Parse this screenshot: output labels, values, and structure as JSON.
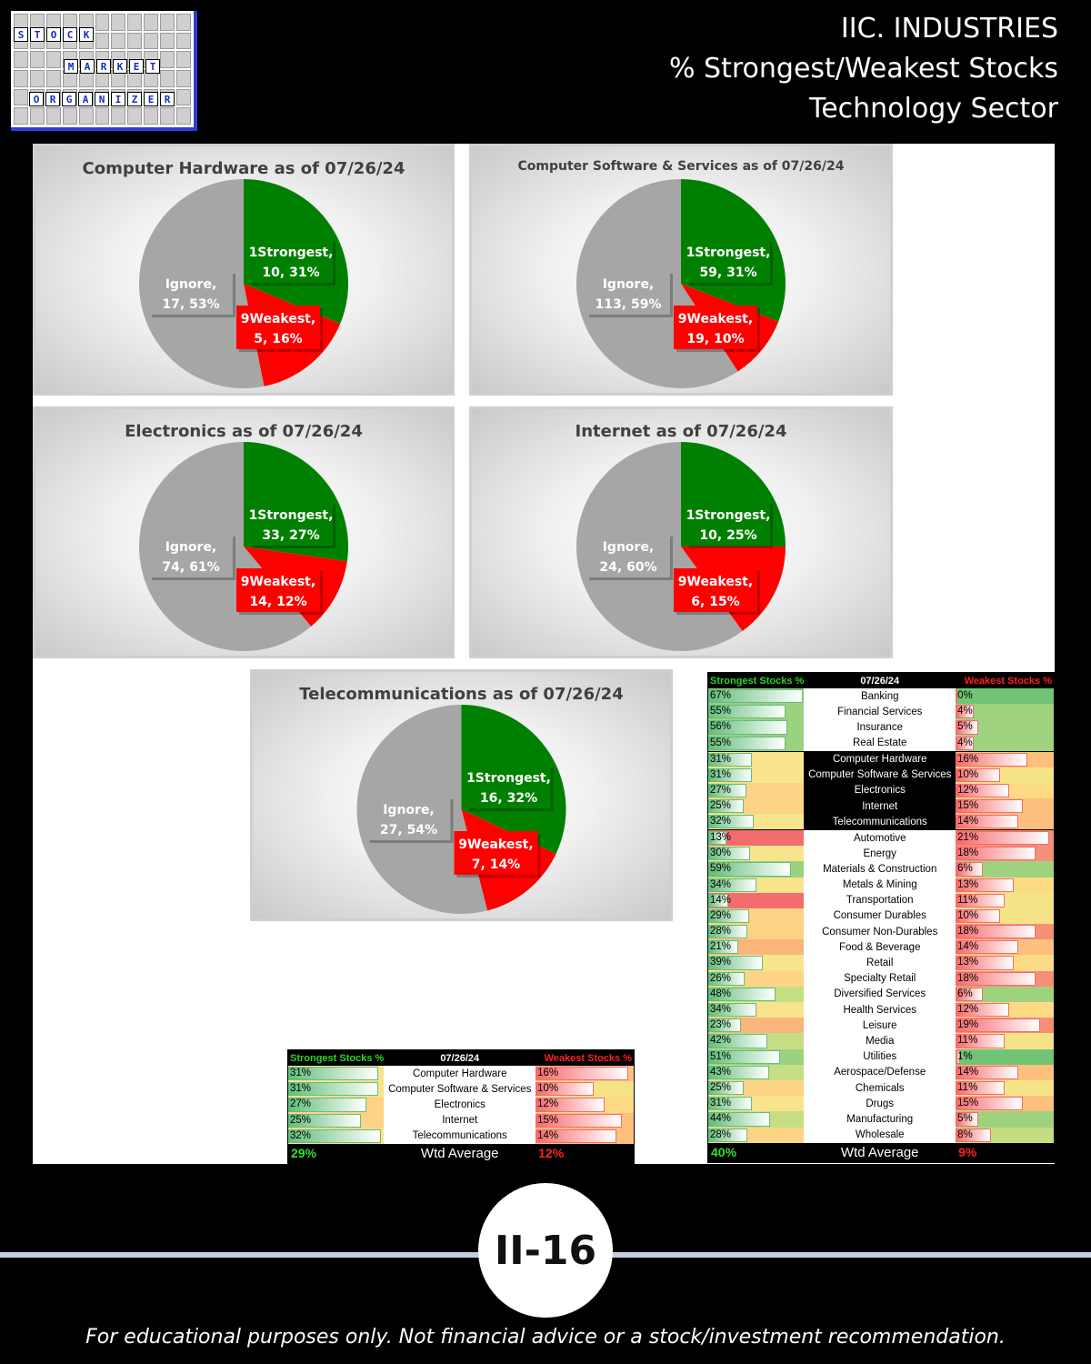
{
  "header": {
    "logo_words": [
      "STOCK",
      "MARKET",
      "ORGANIZER"
    ],
    "title_lines": [
      "IIC. INDUSTRIES",
      "% Strongest/Weakest Stocks",
      "Technology Sector"
    ]
  },
  "colors": {
    "strongest": "#008000",
    "weakest": "#ff0000",
    "ignore": "#a6a6a6"
  },
  "chart_data": [
    {
      "type": "pie",
      "title": "Computer Hardware as of 07/26/24",
      "slices": [
        {
          "name": "1Strongest",
          "value": 10,
          "percent": "31%"
        },
        {
          "name": "9Weakest",
          "value": 5,
          "percent": "16%"
        },
        {
          "name": "Ignore",
          "value": 17,
          "percent": "53%"
        }
      ]
    },
    {
      "type": "pie",
      "title": "Computer Software & Services as of 07/26/24",
      "slices": [
        {
          "name": "1Strongest",
          "value": 59,
          "percent": "31%"
        },
        {
          "name": "9Weakest",
          "value": 19,
          "percent": "10%"
        },
        {
          "name": "Ignore",
          "value": 113,
          "percent": "59%"
        }
      ]
    },
    {
      "type": "pie",
      "title": "Electronics as of 07/26/24",
      "slices": [
        {
          "name": "1Strongest",
          "value": 33,
          "percent": "27%"
        },
        {
          "name": "9Weakest",
          "value": 14,
          "percent": "12%"
        },
        {
          "name": "Ignore",
          "value": 74,
          "percent": "61%"
        }
      ]
    },
    {
      "type": "pie",
      "title": "Internet as of 07/26/24",
      "slices": [
        {
          "name": "1Strongest",
          "value": 10,
          "percent": "25%"
        },
        {
          "name": "9Weakest",
          "value": 6,
          "percent": "15%"
        },
        {
          "name": "Ignore",
          "value": 24,
          "percent": "60%"
        }
      ]
    },
    {
      "type": "pie",
      "title": "Telecommunications as of 07/26/24",
      "slices": [
        {
          "name": "1Strongest",
          "value": 16,
          "percent": "32%"
        },
        {
          "name": "9Weakest",
          "value": 7,
          "percent": "14%"
        },
        {
          "name": "Ignore",
          "value": 27,
          "percent": "54%"
        }
      ]
    }
  ],
  "small_table": {
    "headers": [
      "Strongest Stocks %",
      "07/26/24",
      "Weakest Stocks %"
    ],
    "rows": [
      {
        "strong": "31%",
        "name": "Computer Hardware",
        "weak": "16%"
      },
      {
        "strong": "31%",
        "name": "Computer Software & Services",
        "weak": "10%"
      },
      {
        "strong": "27%",
        "name": "Electronics",
        "weak": "12%"
      },
      {
        "strong": "25%",
        "name": "Internet",
        "weak": "15%"
      },
      {
        "strong": "32%",
        "name": "Telecommunications",
        "weak": "14%"
      }
    ],
    "footer": {
      "strong": "29%",
      "label": "Wtd Average",
      "weak": "12%"
    }
  },
  "big_table": {
    "headers": [
      "Strongest Stocks %",
      "07/26/24",
      "Weakest Stocks %"
    ],
    "rows": [
      {
        "strong": "67%",
        "name": "Banking",
        "weak": "0%"
      },
      {
        "strong": "55%",
        "name": "Financial Services",
        "weak": "4%"
      },
      {
        "strong": "56%",
        "name": "Insurance",
        "weak": "5%"
      },
      {
        "strong": "55%",
        "name": "Real Estate",
        "weak": "4%"
      },
      {
        "strong": "31%",
        "name": "Computer Hardware",
        "weak": "16%",
        "tech": true
      },
      {
        "strong": "31%",
        "name": "Computer Software & Services",
        "weak": "10%",
        "tech": true
      },
      {
        "strong": "27%",
        "name": "Electronics",
        "weak": "12%",
        "tech": true
      },
      {
        "strong": "25%",
        "name": "Internet",
        "weak": "15%",
        "tech": true
      },
      {
        "strong": "32%",
        "name": "Telecommunications",
        "weak": "14%",
        "tech": true
      },
      {
        "strong": "13%",
        "name": "Automotive",
        "weak": "21%"
      },
      {
        "strong": "30%",
        "name": "Energy",
        "weak": "18%"
      },
      {
        "strong": "59%",
        "name": "Materials & Construction",
        "weak": "6%"
      },
      {
        "strong": "34%",
        "name": "Metals & Mining",
        "weak": "13%"
      },
      {
        "strong": "14%",
        "name": "Transportation",
        "weak": "11%"
      },
      {
        "strong": "29%",
        "name": "Consumer Durables",
        "weak": "10%"
      },
      {
        "strong": "28%",
        "name": "Consumer Non-Durables",
        "weak": "18%"
      },
      {
        "strong": "21%",
        "name": "Food & Beverage",
        "weak": "14%"
      },
      {
        "strong": "39%",
        "name": "Retail",
        "weak": "13%"
      },
      {
        "strong": "26%",
        "name": "Specialty Retail",
        "weak": "18%"
      },
      {
        "strong": "48%",
        "name": "Diversified Services",
        "weak": "6%"
      },
      {
        "strong": "34%",
        "name": "Health Services",
        "weak": "12%"
      },
      {
        "strong": "23%",
        "name": "Leisure",
        "weak": "19%"
      },
      {
        "strong": "42%",
        "name": "Media",
        "weak": "11%"
      },
      {
        "strong": "51%",
        "name": "Utilities",
        "weak": "1%"
      },
      {
        "strong": "43%",
        "name": "Aerospace/Defense",
        "weak": "14%"
      },
      {
        "strong": "25%",
        "name": "Chemicals",
        "weak": "11%"
      },
      {
        "strong": "31%",
        "name": "Drugs",
        "weak": "15%"
      },
      {
        "strong": "44%",
        "name": "Manufacturing",
        "weak": "5%"
      },
      {
        "strong": "28%",
        "name": "Wholesale",
        "weak": "8%"
      }
    ],
    "footer": {
      "strong": "40%",
      "label": "Wtd Average",
      "weak": "9%"
    }
  },
  "page_number": "II-16",
  "disclaimer": "For educational purposes only. Not financial advice or a stock/investment recommendation."
}
